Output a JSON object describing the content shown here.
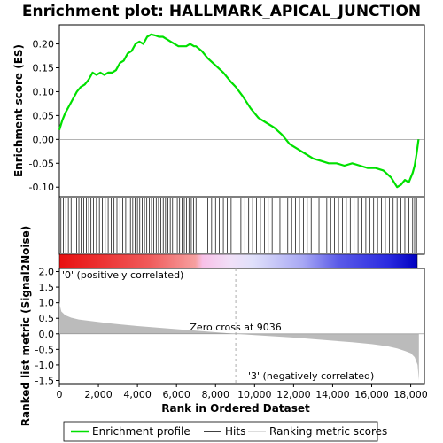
{
  "chart_data": [
    {
      "type": "line",
      "title": "Enrichment plot: HALLMARK_APICAL_JUNCTION",
      "ylabel": "Enrichment score (ES)",
      "ylim": [
        -0.12,
        0.24
      ],
      "yticks": [
        "0.20",
        "0.15",
        "0.10",
        "0.05",
        "0.00",
        "-0.05",
        "-0.10"
      ],
      "ytick_values": [
        0.2,
        0.15,
        0.1,
        0.05,
        0.0,
        -0.05,
        -0.1
      ],
      "xlim": [
        0,
        18700
      ],
      "color": "#00e000",
      "series": [
        {
          "name": "Enrichment profile",
          "x": [
            0,
            150,
            300,
            500,
            700,
            900,
            1100,
            1300,
            1500,
            1700,
            1900,
            2100,
            2300,
            2500,
            2700,
            2900,
            3100,
            3300,
            3500,
            3700,
            3900,
            4100,
            4300,
            4500,
            4700,
            4900,
            5100,
            5300,
            5500,
            5700,
            5900,
            6100,
            6300,
            6500,
            6700,
            6900,
            7000,
            7300,
            7600,
            8000,
            8400,
            8800,
            9036,
            9400,
            9800,
            10200,
            10600,
            11000,
            11400,
            11800,
            12200,
            12600,
            13000,
            13400,
            13800,
            14200,
            14600,
            15000,
            15400,
            15800,
            16200,
            16600,
            17000,
            17300,
            17500,
            17700,
            17900,
            18100,
            18200,
            18300,
            18400
          ],
          "y": [
            0.02,
            0.04,
            0.055,
            0.07,
            0.085,
            0.1,
            0.11,
            0.115,
            0.125,
            0.14,
            0.135,
            0.14,
            0.135,
            0.14,
            0.14,
            0.145,
            0.16,
            0.165,
            0.18,
            0.185,
            0.2,
            0.205,
            0.2,
            0.215,
            0.22,
            0.218,
            0.215,
            0.215,
            0.21,
            0.205,
            0.2,
            0.195,
            0.195,
            0.195,
            0.2,
            0.195,
            0.195,
            0.185,
            0.17,
            0.155,
            0.14,
            0.12,
            0.11,
            0.09,
            0.065,
            0.045,
            0.035,
            0.025,
            0.01,
            -0.01,
            -0.02,
            -0.03,
            -0.04,
            -0.045,
            -0.05,
            -0.05,
            -0.055,
            -0.05,
            -0.055,
            -0.06,
            -0.06,
            -0.065,
            -0.08,
            -0.1,
            -0.095,
            -0.085,
            -0.09,
            -0.07,
            -0.055,
            -0.03,
            0.0
          ]
        }
      ]
    },
    {
      "type": "scatter",
      "series": [
        {
          "name": "Hits",
          "x": [
            80,
            200,
            330,
            460,
            600,
            750,
            880,
            1000,
            1120,
            1250,
            1380,
            1500,
            1620,
            1750,
            1900,
            2050,
            2200,
            2350,
            2500,
            2650,
            2800,
            2950,
            3100,
            3250,
            3400,
            3520,
            3640,
            3760,
            3880,
            4000,
            4120,
            4240,
            4360,
            4480,
            4600,
            4720,
            4840,
            4960,
            5080,
            5200,
            5320,
            5440,
            5560,
            5680,
            5800,
            5920,
            6040,
            6160,
            6280,
            6400,
            6520,
            6640,
            6760,
            6880,
            7000,
            7600,
            7800,
            8000,
            8200,
            8400,
            8600,
            8800,
            9100,
            9300,
            9500,
            9700,
            9900,
            10100,
            10300,
            10500,
            10700,
            10900,
            11100,
            11300,
            11500,
            11700,
            11900,
            12100,
            12300,
            12500,
            12700,
            12900,
            13100,
            13300,
            13500,
            13700,
            13900,
            14100,
            14300,
            14500,
            14700,
            14900,
            15100,
            15300,
            15500,
            15700,
            15900,
            16100,
            16300,
            16500,
            16700,
            16900,
            17100,
            17300,
            17500,
            17700,
            17900,
            18100,
            18200,
            18300
          ]
        }
      ]
    },
    {
      "type": "area",
      "ylabel": "Ranked list metric (Signal2Noise)",
      "xlabel": "Rank in Ordered Dataset",
      "ylim": [
        -1.6,
        2.1
      ],
      "yticks": [
        "2.0",
        "1.5",
        "1.0",
        "0.5",
        "0.0",
        "-0.5",
        "-1.0",
        "-1.5"
      ],
      "ytick_values": [
        2.0,
        1.5,
        1.0,
        0.5,
        0.0,
        -0.5,
        -1.0,
        -1.5
      ],
      "xlim": [
        0,
        18700
      ],
      "xticks": [
        "0",
        "2,000",
        "4,000",
        "6,000",
        "8,000",
        "10,000",
        "12,000",
        "14,000",
        "16,000",
        "18,000"
      ],
      "xtick_values": [
        0,
        2000,
        4000,
        6000,
        8000,
        10000,
        12000,
        14000,
        16000,
        18000
      ],
      "series": [
        {
          "name": "Ranking metric scores",
          "x": [
            0,
            30,
            100,
            300,
            600,
            1000,
            2000,
            3000,
            4000,
            5000,
            6000,
            7000,
            8000,
            9036,
            10000,
            11000,
            12000,
            13000,
            14000,
            15000,
            16000,
            16800,
            17300,
            17700,
            18000,
            18200,
            18350,
            18420
          ],
          "y": [
            1.05,
            0.9,
            0.72,
            0.6,
            0.52,
            0.46,
            0.38,
            0.31,
            0.25,
            0.2,
            0.15,
            0.1,
            0.05,
            0.0,
            -0.04,
            -0.08,
            -0.12,
            -0.17,
            -0.22,
            -0.27,
            -0.33,
            -0.4,
            -0.47,
            -0.55,
            -0.62,
            -0.75,
            -1.0,
            -1.5
          ]
        }
      ],
      "annotations": {
        "zero_cross": "Zero cross at 9036",
        "zero_cross_x": 9036,
        "positive": "'0' (positively correlated)",
        "negative": "'3' (negatively correlated)"
      },
      "colors": {
        "positive": "#ee1111",
        "negative": "#1111ee",
        "positive_text": "#cc0000",
        "negative_text": "#0000cc",
        "fill": "#bbbbbb"
      }
    }
  ],
  "legend": {
    "items": [
      {
        "label": "Enrichment profile",
        "color": "#00e000"
      },
      {
        "label": "Hits",
        "color": "#000000"
      },
      {
        "label": "Ranking metric scores",
        "color": "#bbbbbb"
      }
    ]
  }
}
